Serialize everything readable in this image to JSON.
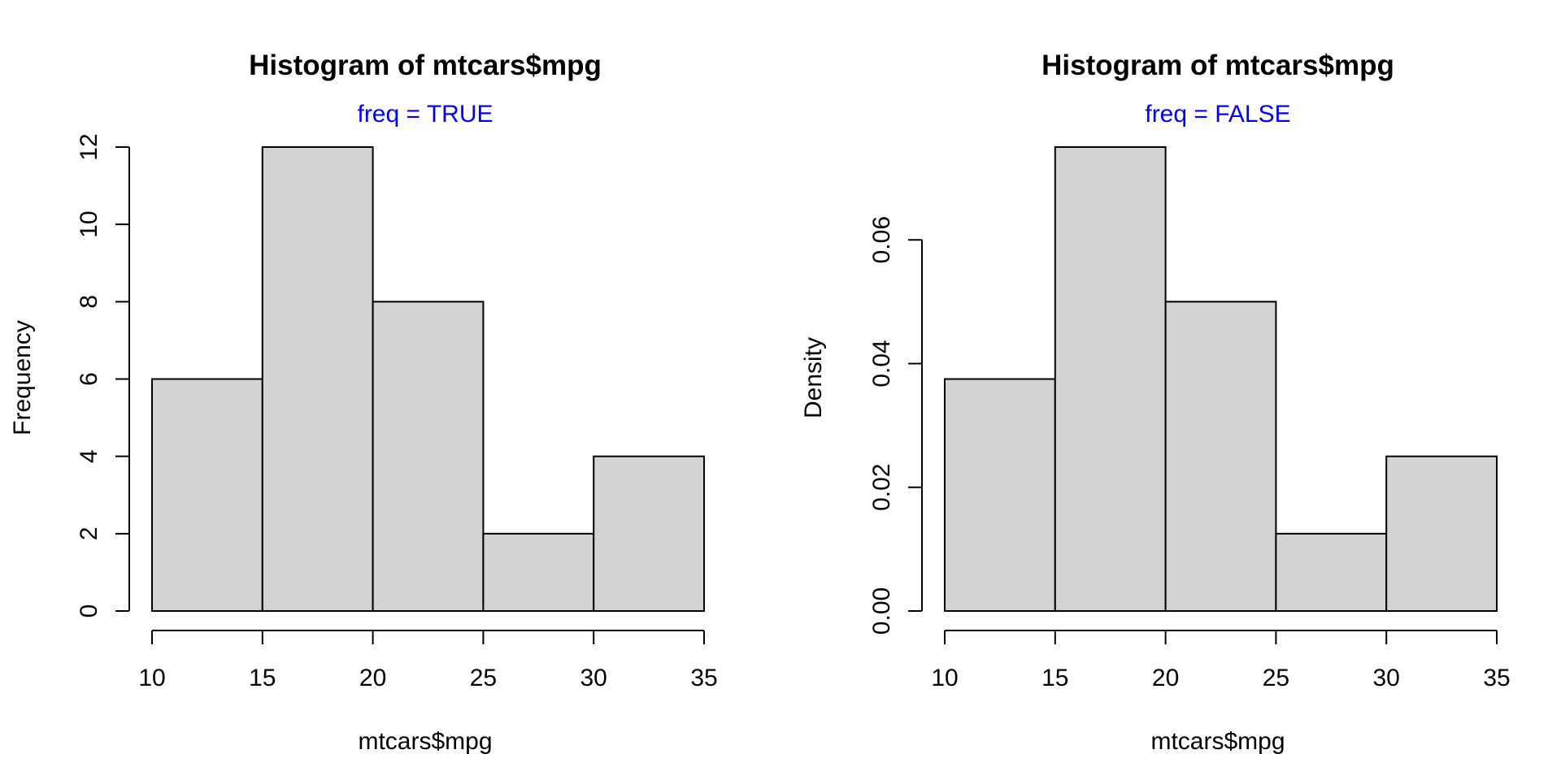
{
  "colors": {
    "bar_fill": "#d3d3d3",
    "bar_stroke": "#000000",
    "subtitle": "#0000ff",
    "text": "#000000"
  },
  "chart_data": [
    {
      "type": "bar",
      "title": "Histogram of mtcars$mpg",
      "subtitle": "freq =  TRUE",
      "xlabel": "mtcars$mpg",
      "ylabel": "Frequency",
      "bins": [
        [
          10,
          15
        ],
        [
          15,
          20
        ],
        [
          20,
          25
        ],
        [
          25,
          30
        ],
        [
          30,
          35
        ]
      ],
      "values": [
        6,
        12,
        8,
        2,
        4
      ],
      "xlim": [
        10,
        35
      ],
      "ylim": [
        0,
        12
      ],
      "xticks": [
        10,
        15,
        20,
        25,
        30,
        35
      ],
      "xtick_labels": [
        "10",
        "15",
        "20",
        "25",
        "30",
        "35"
      ],
      "yticks": [
        0,
        2,
        4,
        6,
        8,
        10,
        12
      ],
      "ytick_labels": [
        "0",
        "2",
        "4",
        "6",
        "8",
        "10",
        "12"
      ],
      "grid": false
    },
    {
      "type": "bar",
      "title": "Histogram of mtcars$mpg",
      "subtitle": "freq =  FALSE",
      "xlabel": "mtcars$mpg",
      "ylabel": "Density",
      "bins": [
        [
          10,
          15
        ],
        [
          15,
          20
        ],
        [
          20,
          25
        ],
        [
          25,
          30
        ],
        [
          30,
          35
        ]
      ],
      "values": [
        0.0375,
        0.075,
        0.05,
        0.0125,
        0.025
      ],
      "xlim": [
        10,
        35
      ],
      "ylim": [
        0,
        0.075
      ],
      "xticks": [
        10,
        15,
        20,
        25,
        30,
        35
      ],
      "xtick_labels": [
        "10",
        "15",
        "20",
        "25",
        "30",
        "35"
      ],
      "yticks": [
        0,
        0.02,
        0.04,
        0.06
      ],
      "ytick_labels": [
        "0.00",
        "0.02",
        "0.04",
        "0.06"
      ],
      "grid": false
    }
  ]
}
